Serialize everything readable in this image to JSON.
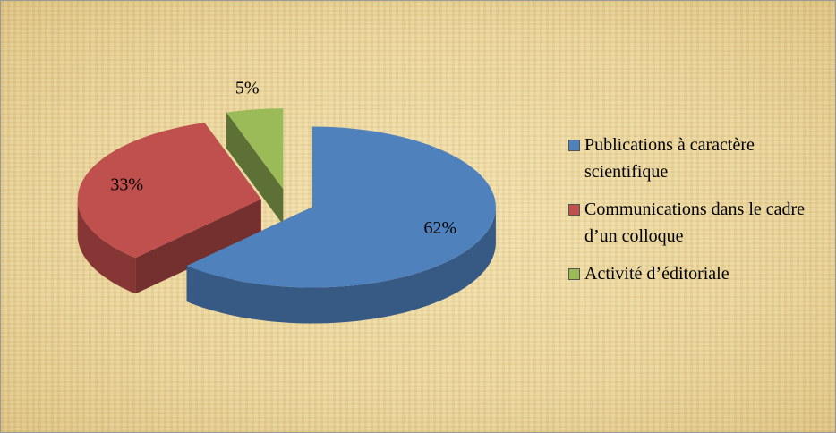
{
  "chart_data": {
    "type": "pie",
    "three_d": true,
    "exploded": true,
    "categories": [
      "Publications à caractère scientifique",
      "Communications dans le cadre d’un colloque",
      "Activité d’éditoriale"
    ],
    "values": [
      62,
      33,
      5
    ],
    "value_labels": [
      "62%",
      "33%",
      "5%"
    ],
    "colors": [
      "#4f81bd",
      "#c0504d",
      "#9bbb59"
    ],
    "legend": "right"
  }
}
